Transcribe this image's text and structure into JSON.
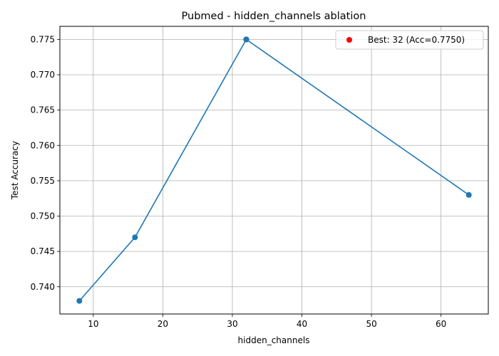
{
  "chart_data": {
    "type": "line",
    "title": "Pubmed - hidden_channels ablation",
    "xlabel": "hidden_channels",
    "ylabel": "Test Accuracy",
    "xlim": [
      5.2,
      66.8
    ],
    "ylim": [
      0.73615,
      0.77685
    ],
    "xticks": [
      10,
      20,
      30,
      40,
      50,
      60
    ],
    "yticks": [
      0.74,
      0.745,
      0.75,
      0.755,
      0.76,
      0.765,
      0.77,
      0.775
    ],
    "grid": true,
    "legend_position": "top-right",
    "series": [
      {
        "x": [
          8,
          16,
          32,
          64
        ],
        "y": [
          0.738,
          0.747,
          0.775,
          0.753
        ],
        "color": "#1f77b4"
      }
    ],
    "best_point": {
      "x": 32,
      "y": 0.775,
      "color": "#ff0000",
      "label": "Best: 32 (Acc=0.7750)"
    }
  }
}
